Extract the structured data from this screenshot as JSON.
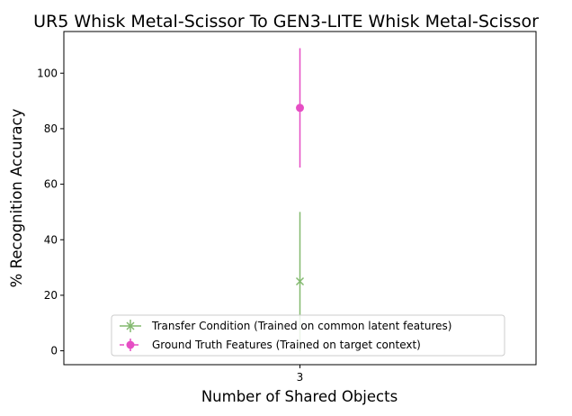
{
  "chart_data": {
    "type": "scatter",
    "title": "UR5 Whisk Metal-Scissor To GEN3-LITE Whisk Metal-Scissor",
    "xlabel": "Number of Shared Objects",
    "ylabel": "% Recognition Accuracy",
    "x_ticks": [
      "3"
    ],
    "y_ticks": [
      0,
      20,
      40,
      60,
      80,
      100
    ],
    "xlim": [
      2.95,
      3.05
    ],
    "ylim": [
      -5,
      115
    ],
    "grid": false,
    "legend_position": "lower-right",
    "series": [
      {
        "name": "Transfer Condition (Trained on common latent features)",
        "color": "#82b96f",
        "marker": "x",
        "points": [
          {
            "x": 3,
            "y": 25,
            "err": 25
          }
        ]
      },
      {
        "name": "Ground Truth Features (Trained on target context)",
        "color": "#e64ec4",
        "marker": "o",
        "points": [
          {
            "x": 3,
            "y": 87.5,
            "err": 21.5
          }
        ]
      }
    ]
  }
}
